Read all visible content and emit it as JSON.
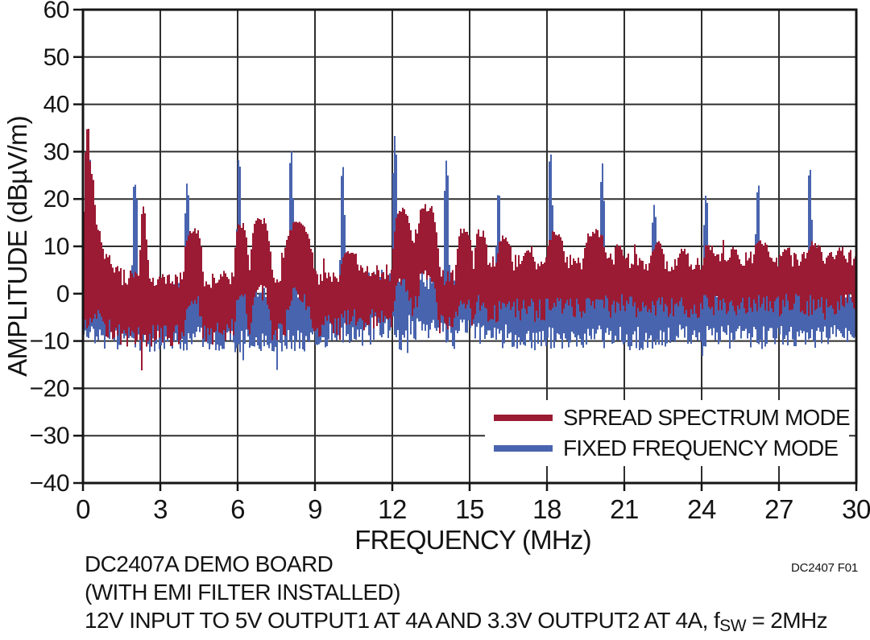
{
  "figure": {
    "fig_ref": "DC2407 F01",
    "caption_line1": "DC2407A DEMO BOARD",
    "caption_line2": "(WITH EMI FILTER INSTALLED)",
    "caption_line3_pre": "12V INPUT TO 5V OUTPUT1 AT 4A AND 3.3V OUTPUT2 AT 4A, f",
    "caption_line3_sub": "SW",
    "caption_line3_post": " = 2MHz"
  },
  "chart_data": {
    "type": "line",
    "title": "",
    "xlabel": "FREQUENCY (MHz)",
    "ylabel": "AMPLITUDE (dBµV/m)",
    "xlim": [
      0,
      30
    ],
    "ylim": [
      -40,
      60
    ],
    "x_ticks": [
      0,
      3,
      6,
      9,
      12,
      15,
      18,
      21,
      24,
      27,
      30
    ],
    "y_ticks": [
      60,
      50,
      40,
      30,
      20,
      10,
      0,
      -10,
      -20,
      -30,
      -40
    ],
    "grid": true,
    "grid_color": "#2e2e2e",
    "axis_color": "#151515",
    "legend": {
      "position": "lower-right",
      "items": [
        {
          "label": "SPREAD SPECTRUM MODE",
          "color": "#9b1b34"
        },
        {
          "label": "FIXED FREQUENCY MODE",
          "color": "#4964ae"
        }
      ]
    },
    "series": [
      {
        "name": "SPREAD SPECTRUM MODE",
        "color": "#9b1b34",
        "z": 2,
        "jitter": 1.9,
        "max_thickness": 13.5,
        "baseline": [
          [
            0,
            6
          ],
          [
            0.45,
            9
          ],
          [
            0.7,
            6.5
          ],
          [
            1,
            5
          ],
          [
            1.5,
            3.5
          ],
          [
            2,
            3
          ],
          [
            3,
            2.5
          ],
          [
            3.6,
            3
          ],
          [
            5,
            2.5
          ],
          [
            5.6,
            3.5
          ],
          [
            7.4,
            3
          ],
          [
            9,
            3
          ],
          [
            9.6,
            4
          ],
          [
            10.4,
            5
          ],
          [
            11.2,
            4.5
          ],
          [
            11.9,
            4
          ],
          [
            14.1,
            3.5
          ],
          [
            14.4,
            4
          ],
          [
            15.8,
            6
          ],
          [
            16.8,
            6.5
          ],
          [
            17.6,
            6
          ],
          [
            18.9,
            6.5
          ],
          [
            21,
            7
          ],
          [
            21.8,
            6.5
          ],
          [
            23,
            6.5
          ],
          [
            25,
            7
          ],
          [
            27,
            7
          ],
          [
            29,
            7
          ],
          [
            30,
            7.5
          ]
        ],
        "band": [
          [
            0,
            13
          ],
          [
            3,
            11.5
          ],
          [
            6,
            11
          ],
          [
            9,
            11
          ],
          [
            12,
            10
          ],
          [
            15,
            10
          ],
          [
            18,
            9.5
          ],
          [
            21,
            9.5
          ],
          [
            24,
            9.5
          ],
          [
            27,
            9.5
          ],
          [
            30,
            9.5
          ]
        ],
        "peaks": [
          [
            0.18,
            35,
            0.1,
            2,
            1
          ],
          [
            0.32,
            26,
            0.14,
            2,
            1
          ],
          [
            0.55,
            14,
            0.22,
            2,
            1
          ],
          [
            0.9,
            8,
            0.3,
            2,
            1
          ],
          [
            2.35,
            17.8,
            0.09,
            2,
            1
          ],
          [
            4.3,
            13.6,
            0.28,
            4,
            0
          ],
          [
            6.15,
            14.5,
            0.22,
            4,
            0
          ],
          [
            6.9,
            15.5,
            0.33,
            4,
            0
          ],
          [
            8.35,
            14.5,
            0.5,
            4,
            0
          ],
          [
            10.35,
            9,
            0.3,
            4,
            0
          ],
          [
            12.4,
            17.5,
            0.33,
            4,
            0
          ],
          [
            12.85,
            11,
            0.2,
            4,
            0
          ],
          [
            13.35,
            18.2,
            0.38,
            4,
            0
          ],
          [
            14.8,
            13.2,
            0.27,
            4,
            0
          ],
          [
            15.45,
            12.8,
            0.22,
            4,
            0
          ],
          [
            16.35,
            11.5,
            0.27,
            4,
            0
          ],
          [
            17.3,
            9.5,
            0.2,
            4,
            0
          ],
          [
            18.35,
            12.5,
            0.33,
            4,
            0
          ],
          [
            19.85,
            13,
            0.4,
            4,
            0
          ],
          [
            20.8,
            10.3,
            0.18,
            4,
            0
          ],
          [
            22.3,
            10.3,
            0.25,
            4,
            0
          ],
          [
            23.3,
            9,
            0.2,
            4,
            0
          ],
          [
            24.3,
            9.6,
            0.25,
            4,
            0
          ],
          [
            25.3,
            9,
            0.2,
            4,
            0
          ],
          [
            26.3,
            10.5,
            0.3,
            4,
            0
          ],
          [
            27.3,
            9,
            0.2,
            4,
            0
          ],
          [
            28.4,
            10.5,
            0.3,
            4,
            0
          ],
          [
            29.4,
            9,
            0.2,
            4,
            0
          ]
        ],
        "down_spikes": [
          [
            2.5,
            -11
          ],
          [
            3.3,
            -10
          ],
          [
            5.5,
            -10.5
          ],
          [
            7.8,
            -9.5
          ]
        ]
      },
      {
        "name": "FIXED FREQUENCY MODE",
        "color": "#4964ae",
        "z": 1,
        "jitter": 2.0,
        "max_thickness": null,
        "baseline": [
          [
            0,
            1
          ],
          [
            0.8,
            0.5
          ],
          [
            2.6,
            0
          ],
          [
            4.5,
            0.5
          ],
          [
            6.5,
            0
          ],
          [
            8.5,
            0.5
          ],
          [
            10.3,
            2
          ],
          [
            11.2,
            3.2
          ],
          [
            12.5,
            3.5
          ],
          [
            13.6,
            2.5
          ],
          [
            14.2,
            1.5
          ],
          [
            14.9,
            3
          ],
          [
            15.6,
            1
          ],
          [
            17,
            0.5
          ],
          [
            19,
            0.5
          ],
          [
            20.5,
            0
          ],
          [
            22,
            0
          ],
          [
            24,
            0.5
          ],
          [
            26,
            0
          ],
          [
            28,
            0.5
          ],
          [
            30,
            -0.5
          ]
        ],
        "band": [
          [
            0,
            10
          ],
          [
            6,
            10
          ],
          [
            12,
            10.5
          ],
          [
            18,
            9.5
          ],
          [
            24,
            9.5
          ],
          [
            30,
            9
          ]
        ],
        "peaks": [
          [
            0.2,
            34,
            0.09,
            2,
            1
          ],
          [
            0.34,
            24,
            0.12,
            2,
            1
          ],
          [
            0.6,
            9,
            0.2,
            2,
            1
          ],
          [
            2.02,
            23.8,
            0.05,
            2,
            1
          ],
          [
            4.04,
            23.3,
            0.05,
            2,
            1
          ],
          [
            6.06,
            27.7,
            0.05,
            2,
            1
          ],
          [
            8.08,
            29.7,
            0.05,
            2,
            1
          ],
          [
            10.08,
            26.3,
            0.05,
            2,
            1
          ],
          [
            12.1,
            33.6,
            0.05,
            2,
            1
          ],
          [
            14.1,
            27.7,
            0.05,
            2,
            1
          ],
          [
            16.12,
            20.7,
            0.05,
            2,
            1
          ],
          [
            18.14,
            29.9,
            0.05,
            2,
            1
          ],
          [
            20.15,
            26.7,
            0.05,
            2,
            1
          ],
          [
            22.16,
            19,
            0.05,
            2,
            1
          ],
          [
            24.17,
            20.9,
            0.05,
            2,
            1
          ],
          [
            26.18,
            22.2,
            0.05,
            2,
            1
          ],
          [
            28.2,
            26.3,
            0.05,
            2,
            1
          ]
        ],
        "down_spikes": [
          [
            2.75,
            -13
          ],
          [
            7.35,
            -13.5
          ],
          [
            12.3,
            -12.5
          ],
          [
            14.35,
            -12
          ],
          [
            21.6,
            -11.5
          ],
          [
            27.6,
            -12
          ]
        ]
      }
    ]
  }
}
